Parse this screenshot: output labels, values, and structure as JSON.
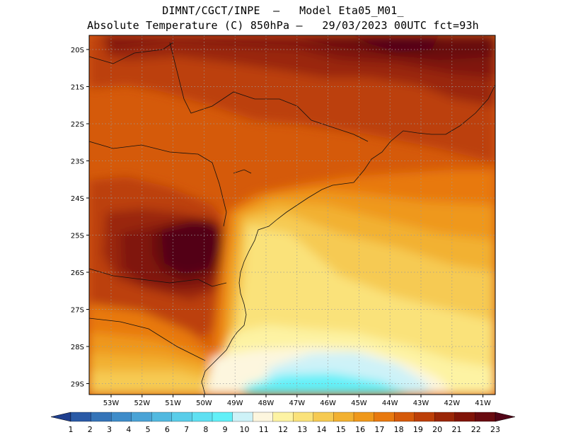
{
  "header": {
    "line1": "DIMNT/CGCT/INPE  —   Model Eta05_M01_",
    "line2": "Absolute Temperature (C) 850hPa —   29/03/2023 00UTC fct=93h"
  },
  "map": {
    "lat_labels": [
      "20S",
      "21S",
      "22S",
      "23S",
      "24S",
      "25S",
      "26S",
      "27S",
      "28S",
      "29S"
    ],
    "lon_labels": [
      "53W",
      "52W",
      "51W",
      "50W",
      "49W",
      "48W",
      "47W",
      "46W",
      "45W",
      "44W",
      "43W",
      "42W",
      "41W"
    ],
    "field": "Absolute Temperature (C) 850hPa",
    "units": "C"
  },
  "colorbar": {
    "labels": [
      "1",
      "2",
      "3",
      "4",
      "5",
      "6",
      "7",
      "8",
      "9",
      "10",
      "11",
      "12",
      "13",
      "14",
      "15",
      "16",
      "17",
      "18",
      "19",
      "20",
      "21",
      "22",
      "23"
    ],
    "colors": [
      "#1f3f8f",
      "#2a5aa6",
      "#3574b8",
      "#3f8cc9",
      "#4aa3d6",
      "#52b9e0",
      "#5acde9",
      "#5fe0f2",
      "#62f0f8",
      "#cdf2f8",
      "#fdf6de",
      "#fdf3a3",
      "#fae27a",
      "#f6ca52",
      "#f2b131",
      "#ef981b",
      "#e8790f",
      "#d55a0a",
      "#bc3f08",
      "#9a2607",
      "#801408",
      "#690b10",
      "#520417"
    ]
  }
}
